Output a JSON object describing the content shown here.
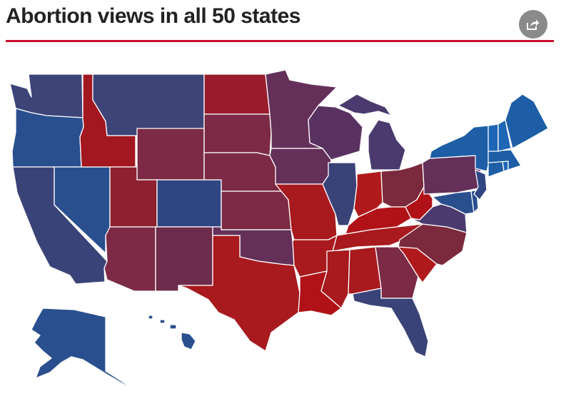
{
  "header": {
    "title": "Abortion views in all 50 states",
    "share_icon": "share-icon"
  },
  "colors": {
    "accent_rule": "#c8102e",
    "share_button": "#8a8a8a",
    "map_stroke": "#ffffff",
    "lean_red_strong": "#b01218",
    "lean_red": "#9a1c2c",
    "mixed_red": "#7c2a45",
    "mixed_purple": "#64305a",
    "mixed_blue": "#4a3a6e",
    "lean_blue": "#3a4378",
    "blue": "#2a4f8e",
    "blue_strong": "#1d5ea6",
    "blue_bright": "#1e66b6"
  },
  "map": {
    "type": "choropleth",
    "region": "United States (50 states)",
    "legend": "none"
  }
}
